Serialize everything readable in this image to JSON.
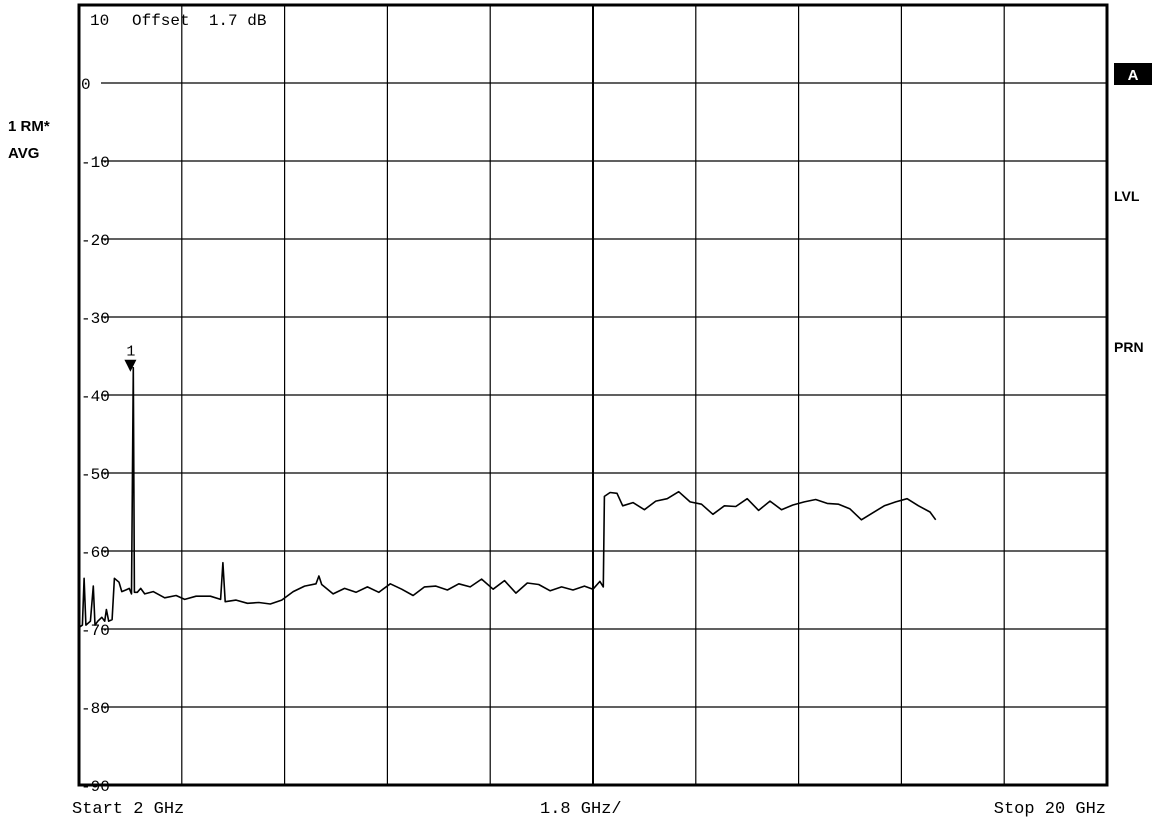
{
  "header": {
    "ref_level": "10",
    "offset": "Offset  1.7 dB"
  },
  "left_panel": {
    "trace_label": "1 RM*",
    "detector_label": "AVG"
  },
  "right_panel": {
    "badge": "A",
    "lvl": "LVL",
    "prn": "PRN"
  },
  "footer": {
    "start": "Start 2 GHz",
    "span_per_div": "1.8 GHz/",
    "stop": "Stop 20 GHz"
  },
  "marker": {
    "label": "1",
    "x": 2.9,
    "y": -36.5
  },
  "colors": {
    "trace": "#000000",
    "grid": "#000000",
    "background": "#ffffff"
  },
  "chart_data": {
    "type": "line",
    "xlim": [
      2,
      20
    ],
    "ylim": [
      -90,
      10
    ],
    "x_unit": "GHz",
    "y_unit": "dB",
    "grid": true,
    "y_ticks": [
      0,
      -10,
      -20,
      -30,
      -40,
      -50,
      -60,
      -70,
      -80,
      -90
    ],
    "y_tick_labels": [
      "0",
      "-10",
      "-20",
      "-30",
      "-40",
      "-50",
      "-60",
      "-70",
      "-80",
      "-90"
    ],
    "series": [
      {
        "points": [
          [
            2.0,
            -69.8
          ],
          [
            2.06,
            -69.5
          ],
          [
            2.09,
            -63.5
          ],
          [
            2.12,
            -69.5
          ],
          [
            2.2,
            -69.0
          ],
          [
            2.25,
            -64.5
          ],
          [
            2.28,
            -69.5
          ],
          [
            2.33,
            -69.0
          ],
          [
            2.4,
            -68.5
          ],
          [
            2.45,
            -69.0
          ],
          [
            2.48,
            -67.5
          ],
          [
            2.52,
            -69.0
          ],
          [
            2.58,
            -68.8
          ],
          [
            2.62,
            -63.5
          ],
          [
            2.7,
            -64.0
          ],
          [
            2.75,
            -65.2
          ],
          [
            2.82,
            -65.0
          ],
          [
            2.88,
            -64.8
          ],
          [
            2.92,
            -65.5
          ],
          [
            2.95,
            -36.5
          ],
          [
            2.97,
            -65.3
          ],
          [
            3.02,
            -65.3
          ],
          [
            3.08,
            -64.8
          ],
          [
            3.15,
            -65.5
          ],
          [
            3.3,
            -65.2
          ],
          [
            3.5,
            -66.0
          ],
          [
            3.7,
            -65.7
          ],
          [
            3.85,
            -66.2
          ],
          [
            4.05,
            -65.8
          ],
          [
            4.3,
            -65.8
          ],
          [
            4.48,
            -66.2
          ],
          [
            4.52,
            -61.5
          ],
          [
            4.56,
            -66.5
          ],
          [
            4.75,
            -66.3
          ],
          [
            4.95,
            -66.7
          ],
          [
            5.15,
            -66.6
          ],
          [
            5.35,
            -66.8
          ],
          [
            5.55,
            -66.3
          ],
          [
            5.75,
            -65.2
          ],
          [
            5.95,
            -64.5
          ],
          [
            6.15,
            -64.2
          ],
          [
            6.2,
            -63.2
          ],
          [
            6.25,
            -64.3
          ],
          [
            6.45,
            -65.5
          ],
          [
            6.65,
            -64.8
          ],
          [
            6.85,
            -65.3
          ],
          [
            7.05,
            -64.6
          ],
          [
            7.25,
            -65.3
          ],
          [
            7.45,
            -64.2
          ],
          [
            7.65,
            -64.9
          ],
          [
            7.85,
            -65.7
          ],
          [
            8.05,
            -64.6
          ],
          [
            8.25,
            -64.5
          ],
          [
            8.45,
            -65.0
          ],
          [
            8.65,
            -64.2
          ],
          [
            8.85,
            -64.6
          ],
          [
            9.05,
            -63.6
          ],
          [
            9.25,
            -64.9
          ],
          [
            9.45,
            -63.8
          ],
          [
            9.65,
            -65.4
          ],
          [
            9.85,
            -64.1
          ],
          [
            10.05,
            -64.3
          ],
          [
            10.25,
            -65.1
          ],
          [
            10.45,
            -64.6
          ],
          [
            10.65,
            -65.0
          ],
          [
            10.85,
            -64.5
          ],
          [
            11.0,
            -64.9
          ],
          [
            11.12,
            -63.9
          ],
          [
            11.18,
            -64.6
          ],
          [
            11.2,
            -53.0
          ],
          [
            11.3,
            -52.5
          ],
          [
            11.42,
            -52.6
          ],
          [
            11.52,
            -54.2
          ],
          [
            11.7,
            -53.8
          ],
          [
            11.9,
            -54.7
          ],
          [
            12.1,
            -53.6
          ],
          [
            12.3,
            -53.3
          ],
          [
            12.5,
            -52.4
          ],
          [
            12.7,
            -53.7
          ],
          [
            12.9,
            -54.0
          ],
          [
            13.1,
            -55.3
          ],
          [
            13.3,
            -54.2
          ],
          [
            13.5,
            -54.3
          ],
          [
            13.7,
            -53.3
          ],
          [
            13.9,
            -54.8
          ],
          [
            14.1,
            -53.6
          ],
          [
            14.3,
            -54.7
          ],
          [
            14.5,
            -54.1
          ],
          [
            14.7,
            -53.7
          ],
          [
            14.9,
            -53.4
          ],
          [
            15.1,
            -53.9
          ],
          [
            15.3,
            -54.0
          ],
          [
            15.5,
            -54.6
          ],
          [
            15.7,
            -56.0
          ],
          [
            15.9,
            -55.1
          ],
          [
            16.1,
            -54.2
          ],
          [
            16.3,
            -53.7
          ],
          [
            16.5,
            -53.3
          ],
          [
            16.7,
            -54.2
          ],
          [
            16.9,
            -55.0
          ],
          [
            17.0,
            -56.0
          ]
        ]
      }
    ]
  }
}
